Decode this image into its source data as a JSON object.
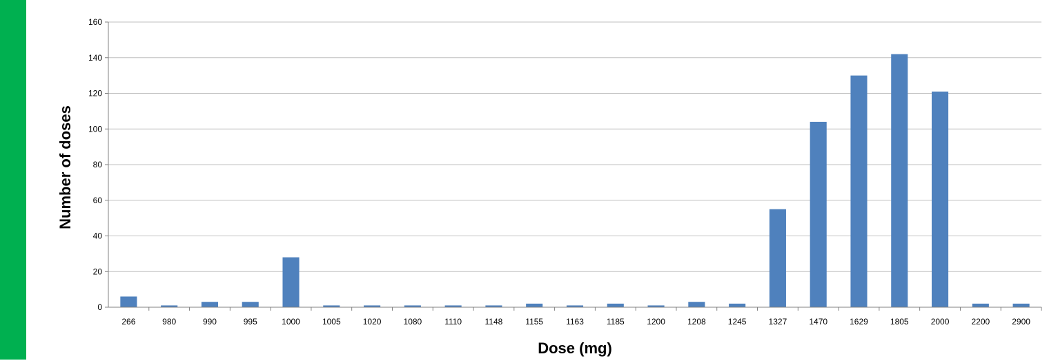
{
  "colors": {
    "side_bar": "#00b050",
    "bar_fill": "#4f81bd",
    "grid": "#bfbfbf",
    "axis": "#808080"
  },
  "chart_data": {
    "type": "bar",
    "title": "",
    "xlabel": "Dose (mg)",
    "ylabel": "Number of doses",
    "ylim": [
      0,
      160
    ],
    "yticks": [
      0,
      20,
      40,
      60,
      80,
      100,
      120,
      140,
      160
    ],
    "grid": true,
    "categories": [
      "266",
      "980",
      "990",
      "995",
      "1000",
      "1005",
      "1020",
      "1080",
      "1110",
      "1148",
      "1155",
      "1163",
      "1185",
      "1200",
      "1208",
      "1245",
      "1327",
      "1470",
      "1629",
      "1805",
      "2000",
      "2200",
      "2900"
    ],
    "values": [
      6,
      1,
      3,
      3,
      28,
      1,
      1,
      1,
      1,
      1,
      2,
      1,
      2,
      1,
      3,
      2,
      55,
      104,
      130,
      142,
      121,
      2,
      2
    ]
  }
}
